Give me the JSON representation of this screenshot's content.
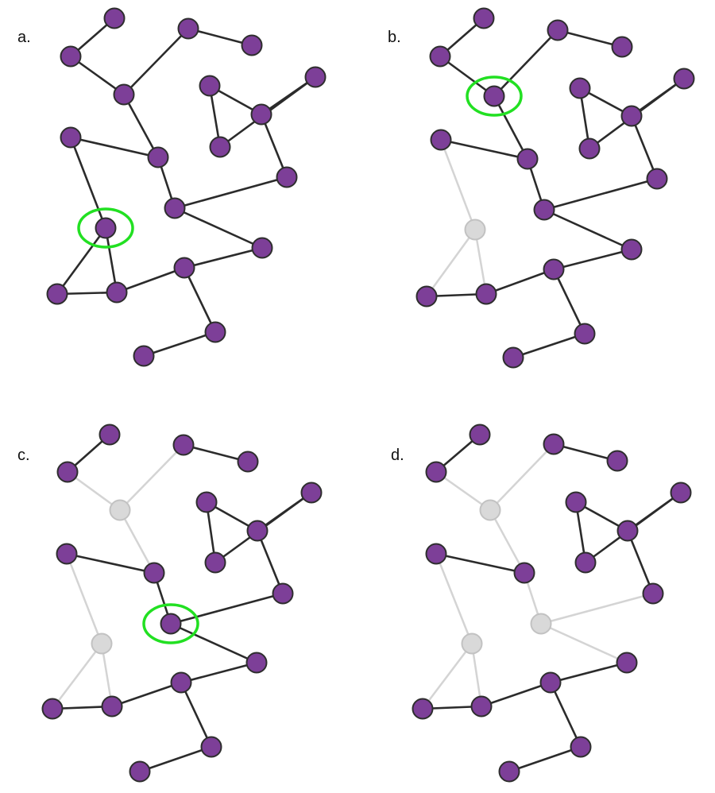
{
  "colors": {
    "node_active": "#7d3f98",
    "node_removed": "#d9d9d9",
    "edge_active": "#2b2b2b",
    "edge_removed": "#d4d4d4",
    "highlight": "#22e022"
  },
  "panels": [
    {
      "label": "a.",
      "removed_nodes": [],
      "highlight_node": 13
    },
    {
      "label": "b.",
      "removed_nodes": [
        13
      ],
      "highlight_node": 3
    },
    {
      "label": "c.",
      "removed_nodes": [
        13,
        3
      ],
      "highlight_node": 11
    },
    {
      "label": "d.",
      "removed_nodes": [
        13,
        3,
        11
      ],
      "highlight_node": null
    }
  ],
  "graph": {
    "node_count": 20,
    "edges": [
      [
        0,
        1
      ],
      [
        1,
        3
      ],
      [
        2,
        3
      ],
      [
        2,
        4
      ],
      [
        3,
        9
      ],
      [
        5,
        8
      ],
      [
        5,
        6
      ],
      [
        7,
        8
      ],
      [
        7,
        6
      ],
      [
        6,
        10
      ],
      [
        9,
        11
      ],
      [
        12,
        9
      ],
      [
        12,
        13
      ],
      [
        11,
        10
      ],
      [
        11,
        14
      ],
      [
        13,
        15
      ],
      [
        13,
        16
      ],
      [
        15,
        16
      ],
      [
        16,
        17
      ],
      [
        17,
        14
      ],
      [
        17,
        18
      ],
      [
        18,
        19
      ]
    ]
  }
}
